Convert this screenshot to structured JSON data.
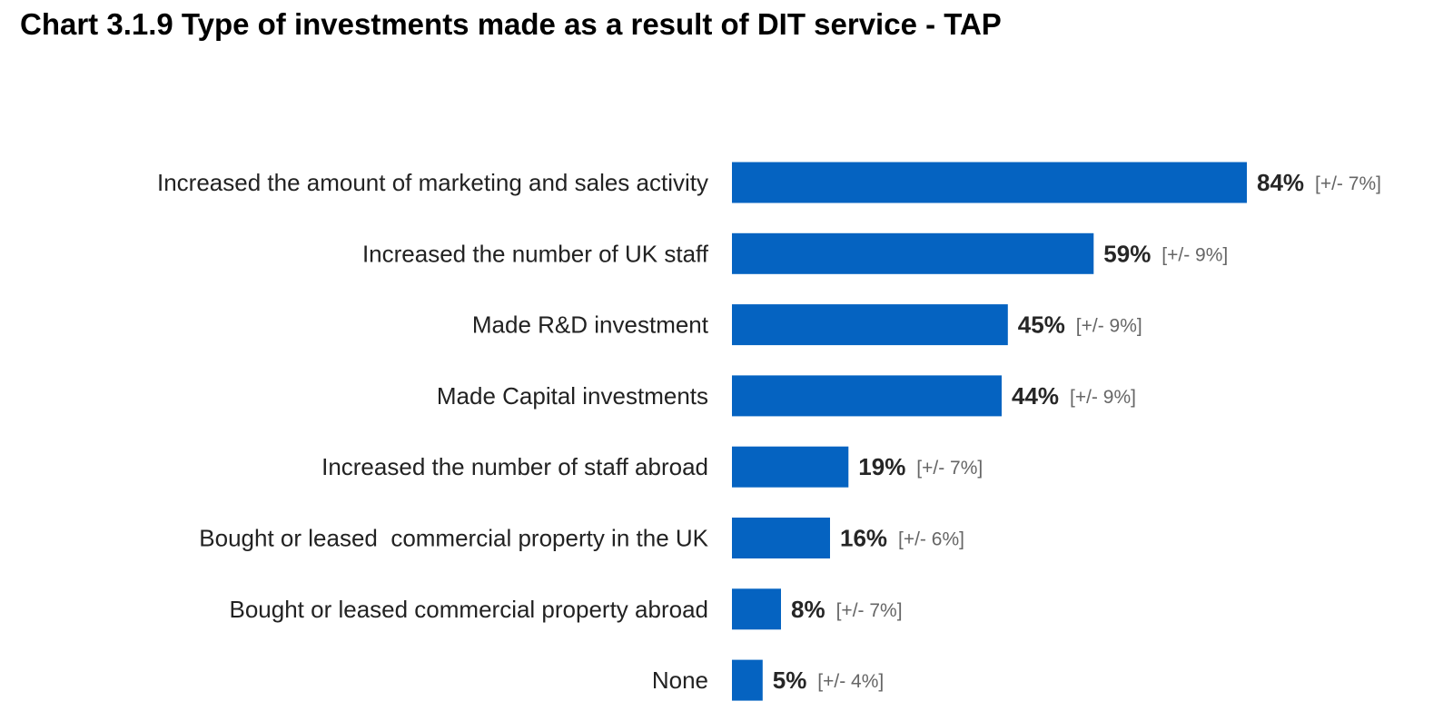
{
  "chart_data": {
    "type": "bar",
    "orientation": "horizontal",
    "title": "Chart 3.1.9 Type of investments made as a result of DIT service - TAP",
    "xlabel": "",
    "ylabel": "",
    "xlim": [
      0,
      100
    ],
    "grid": false,
    "legend": "none",
    "bar_color": "#0563C1",
    "categories": [
      "Increased the amount of marketing and sales activity",
      "Increased the number of UK staff",
      "Made R&D investment",
      "Made Capital investments",
      "Increased the number of staff abroad",
      "Bought or leased  commercial property in the UK",
      "Bought or leased commercial property abroad",
      "None"
    ],
    "values": [
      84,
      59,
      45,
      44,
      19,
      16,
      8,
      5
    ],
    "value_labels": [
      "84%",
      "59%",
      "45%",
      "44%",
      "19%",
      "16%",
      "8%",
      "5%"
    ],
    "error_labels": [
      "[+/- 7%]",
      "[+/- 9%]",
      "[+/- 9%]",
      "[+/- 9%]",
      "[+/- 7%]",
      "[+/- 6%]",
      "[+/- 7%]",
      "[+/- 4%]"
    ]
  }
}
